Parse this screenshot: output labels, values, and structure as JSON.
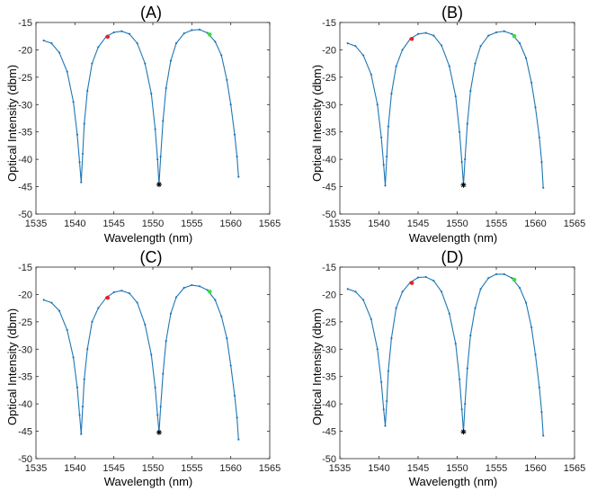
{
  "colors": {
    "line": "#1f77b4",
    "red_marker": "#e8202a",
    "green_marker": "#3ddc3d",
    "black_marker": "#000000",
    "axis": "#262626"
  },
  "chart_data": [
    {
      "type": "line",
      "title": "(A)",
      "xlabel": "Wavelength (nm)",
      "ylabel": "Optical Intensity (dbm)",
      "xlim": [
        1535,
        1565
      ],
      "ylim": [
        -50,
        -15
      ],
      "xticks": [
        "1535",
        "1540",
        "1545",
        "1550",
        "1555",
        "1560",
        "1565"
      ],
      "yticks": [
        "-50",
        "-45",
        "-40",
        "-35",
        "-30",
        "-25",
        "-20",
        "-15"
      ],
      "x": [
        1536.0,
        1537.0,
        1538.0,
        1539.0,
        1539.8,
        1540.3,
        1540.6,
        1540.8,
        1541.0,
        1541.2,
        1541.6,
        1542.2,
        1543.0,
        1544.0,
        1545.0,
        1546.0,
        1547.0,
        1548.0,
        1549.0,
        1549.8,
        1550.3,
        1550.6,
        1550.8,
        1551.0,
        1551.3,
        1551.7,
        1552.3,
        1553.0,
        1554.0,
        1555.0,
        1556.0,
        1557.0,
        1558.0,
        1558.8,
        1559.5,
        1560.0,
        1560.5,
        1560.8,
        1561.0
      ],
      "y": [
        -18.3,
        -18.8,
        -20.5,
        -24.0,
        -29.5,
        -35.5,
        -40.5,
        -44.2,
        -39.0,
        -33.5,
        -27.5,
        -22.5,
        -19.5,
        -17.6,
        -16.8,
        -16.6,
        -17.1,
        -18.8,
        -22.5,
        -28.0,
        -34.5,
        -40.0,
        -44.6,
        -39.5,
        -33.0,
        -27.0,
        -22.0,
        -18.8,
        -17.0,
        -16.4,
        -16.3,
        -16.9,
        -18.5,
        -21.0,
        -25.5,
        -30.0,
        -35.5,
        -39.5,
        -43.2
      ],
      "red_marker": {
        "x": 1544.2,
        "y": -17.6
      },
      "green_marker": {
        "x": 1557.3,
        "y": -17.2
      },
      "black_marker": {
        "x": 1550.8,
        "y": -44.6
      }
    },
    {
      "type": "line",
      "title": "(B)",
      "xlabel": "Wavelength (nm)",
      "ylabel": "Optical Intensity (dbm)",
      "xlim": [
        1535,
        1565
      ],
      "ylim": [
        -50,
        -15
      ],
      "xticks": [
        "1535",
        "1540",
        "1545",
        "1550",
        "1555",
        "1560",
        "1565"
      ],
      "yticks": [
        "-50",
        "-45",
        "-40",
        "-35",
        "-30",
        "-25",
        "-20",
        "-15"
      ],
      "x": [
        1536.0,
        1537.0,
        1538.0,
        1539.0,
        1539.8,
        1540.3,
        1540.6,
        1540.8,
        1541.0,
        1541.2,
        1541.6,
        1542.2,
        1543.0,
        1544.0,
        1545.0,
        1546.0,
        1547.0,
        1548.0,
        1549.0,
        1549.8,
        1550.3,
        1550.6,
        1550.8,
        1551.0,
        1551.3,
        1551.7,
        1552.3,
        1553.0,
        1554.0,
        1555.0,
        1556.0,
        1557.0,
        1558.0,
        1558.8,
        1559.5,
        1560.0,
        1560.5,
        1560.8,
        1561.0
      ],
      "y": [
        -18.8,
        -19.3,
        -21.0,
        -24.5,
        -30.0,
        -36.0,
        -41.0,
        -44.8,
        -39.5,
        -34.0,
        -28.0,
        -23.0,
        -20.0,
        -18.0,
        -17.1,
        -16.9,
        -17.4,
        -19.2,
        -23.0,
        -28.5,
        -35.0,
        -40.5,
        -44.7,
        -40.0,
        -33.5,
        -27.5,
        -22.5,
        -19.3,
        -17.4,
        -16.8,
        -16.6,
        -17.1,
        -18.8,
        -21.5,
        -26.0,
        -30.5,
        -36.0,
        -40.5,
        -45.2
      ],
      "red_marker": {
        "x": 1544.2,
        "y": -18.0
      },
      "green_marker": {
        "x": 1557.3,
        "y": -17.5
      },
      "black_marker": {
        "x": 1550.8,
        "y": -44.7
      }
    },
    {
      "type": "line",
      "title": "(C)",
      "xlabel": "Wavelength (nm)",
      "ylabel": "Optical Intensity (dbm)",
      "xlim": [
        1535,
        1565
      ],
      "ylim": [
        -50,
        -15
      ],
      "xticks": [
        "1535",
        "1540",
        "1545",
        "1550",
        "1555",
        "1560",
        "1565"
      ],
      "yticks": [
        "-50",
        "-45",
        "-40",
        "-35",
        "-30",
        "-25",
        "-20",
        "-15"
      ],
      "x": [
        1536.0,
        1537.0,
        1538.0,
        1539.0,
        1539.8,
        1540.3,
        1540.6,
        1540.8,
        1541.0,
        1541.2,
        1541.6,
        1542.2,
        1543.0,
        1544.0,
        1545.0,
        1546.0,
        1547.0,
        1548.0,
        1549.0,
        1549.8,
        1550.3,
        1550.6,
        1550.8,
        1551.0,
        1551.3,
        1551.7,
        1552.3,
        1553.0,
        1554.0,
        1555.0,
        1556.0,
        1557.0,
        1558.0,
        1558.8,
        1559.5,
        1560.0,
        1560.5,
        1560.8,
        1561.0
      ],
      "y": [
        -21.0,
        -21.5,
        -23.0,
        -26.5,
        -31.5,
        -37.0,
        -42.0,
        -45.5,
        -40.5,
        -35.5,
        -30.0,
        -25.0,
        -22.5,
        -20.6,
        -19.6,
        -19.3,
        -19.8,
        -21.5,
        -25.5,
        -31.0,
        -37.0,
        -42.0,
        -45.2,
        -40.5,
        -34.5,
        -28.5,
        -23.5,
        -20.5,
        -18.8,
        -18.3,
        -18.5,
        -19.2,
        -21.0,
        -24.0,
        -28.0,
        -33.0,
        -38.5,
        -42.5,
        -46.5
      ],
      "red_marker": {
        "x": 1544.2,
        "y": -20.6
      },
      "green_marker": {
        "x": 1557.3,
        "y": -19.5
      },
      "black_marker": {
        "x": 1550.8,
        "y": -45.2
      }
    },
    {
      "type": "line",
      "title": "(D)",
      "xlabel": "Wavelength (nm)",
      "ylabel": "Optical Intensity (dbm)",
      "xlim": [
        1535,
        1565
      ],
      "ylim": [
        -50,
        -15
      ],
      "xticks": [
        "1535",
        "1540",
        "1545",
        "1550",
        "1555",
        "1560",
        "1565"
      ],
      "yticks": [
        "-50",
        "-45",
        "-40",
        "-35",
        "-30",
        "-25",
        "-20",
        "-15"
      ],
      "x": [
        1536.0,
        1537.0,
        1538.0,
        1539.0,
        1539.8,
        1540.3,
        1540.6,
        1540.8,
        1541.0,
        1541.2,
        1541.6,
        1542.2,
        1543.0,
        1544.0,
        1545.0,
        1546.0,
        1547.0,
        1548.0,
        1549.0,
        1549.8,
        1550.3,
        1550.6,
        1550.8,
        1551.0,
        1551.3,
        1551.7,
        1552.3,
        1553.0,
        1554.0,
        1555.0,
        1556.0,
        1557.0,
        1558.0,
        1558.8,
        1559.5,
        1560.0,
        1560.5,
        1560.8,
        1561.0
      ],
      "y": [
        -19.0,
        -19.5,
        -21.0,
        -24.5,
        -30.0,
        -36.0,
        -41.0,
        -44.0,
        -39.5,
        -34.0,
        -28.0,
        -22.5,
        -19.5,
        -17.8,
        -16.9,
        -16.8,
        -17.5,
        -19.5,
        -23.5,
        -29.0,
        -35.5,
        -41.0,
        -45.1,
        -40.0,
        -33.5,
        -27.5,
        -22.5,
        -19.0,
        -17.0,
        -16.3,
        -16.3,
        -17.0,
        -18.8,
        -21.5,
        -26.0,
        -31.0,
        -37.0,
        -41.5,
        -45.8
      ],
      "red_marker": {
        "x": 1544.2,
        "y": -17.9
      },
      "green_marker": {
        "x": 1557.3,
        "y": -17.3
      },
      "black_marker": {
        "x": 1550.8,
        "y": -45.1
      }
    }
  ]
}
